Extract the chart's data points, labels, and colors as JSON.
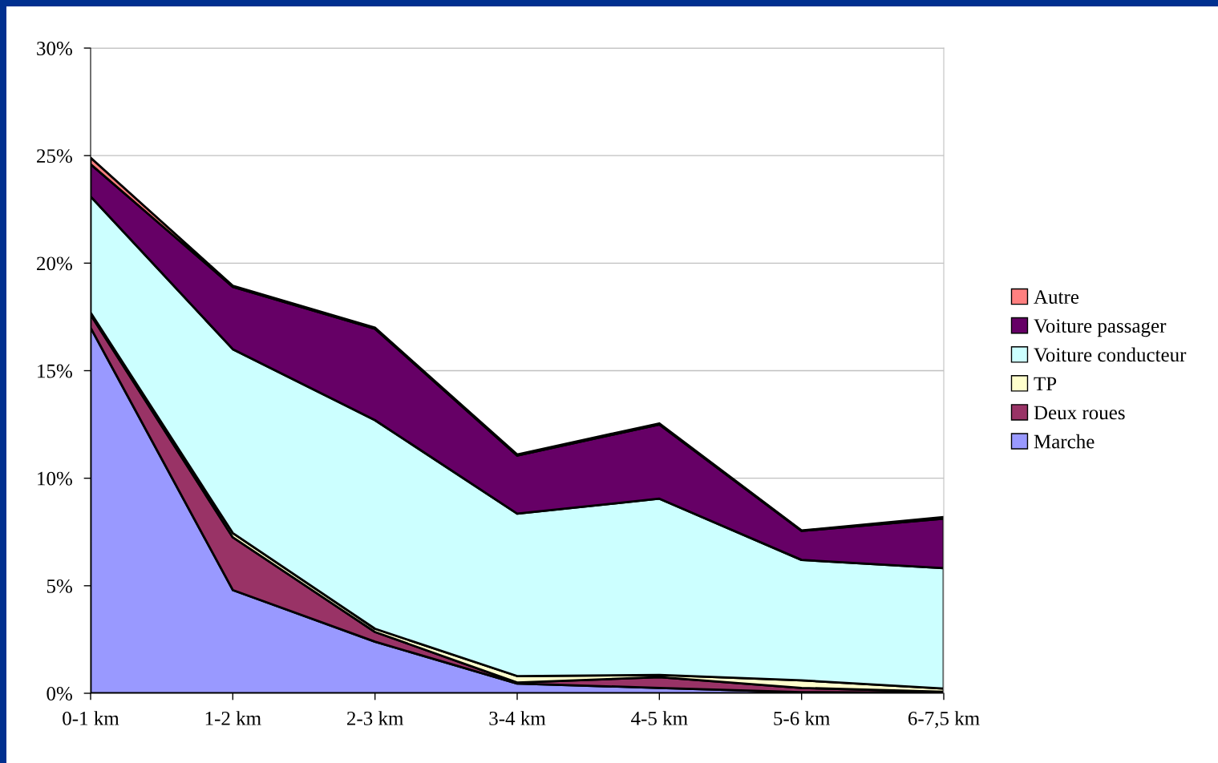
{
  "chart_data": {
    "type": "area",
    "stacked": true,
    "categories": [
      "0-1 km",
      "1-2 km",
      "2-3 km",
      "3-4 km",
      "4-5 km",
      "5-6 km",
      "6-7,5 km"
    ],
    "series": [
      {
        "name": "Marche",
        "color": "#9999ff",
        "values": [
          17.0,
          4.8,
          2.4,
          0.45,
          0.25,
          0.05,
          0.02
        ]
      },
      {
        "name": "Deux roues",
        "color": "#993366",
        "values": [
          0.6,
          2.45,
          0.45,
          0.05,
          0.5,
          0.2,
          0.05
        ]
      },
      {
        "name": "TP",
        "color": "#ffffcc",
        "values": [
          0.1,
          0.2,
          0.15,
          0.3,
          0.1,
          0.35,
          0.15
        ]
      },
      {
        "name": "Voiture conducteur",
        "color": "#ccffff",
        "values": [
          5.4,
          8.55,
          9.7,
          7.55,
          8.2,
          5.6,
          5.6
        ]
      },
      {
        "name": "Voiture passager",
        "color": "#660066",
        "values": [
          1.5,
          2.9,
          4.25,
          2.7,
          3.45,
          1.35,
          2.3
        ]
      },
      {
        "name": "Autre",
        "color": "#ff8080",
        "values": [
          0.3,
          0.05,
          0.05,
          0.05,
          0.05,
          0.02,
          0.07
        ]
      }
    ],
    "ylim": [
      0,
      30
    ],
    "yticks": [
      {
        "value": 0,
        "label": "0%"
      },
      {
        "value": 5,
        "label": "5%"
      },
      {
        "value": 10,
        "label": "10%"
      },
      {
        "value": 15,
        "label": "15%"
      },
      {
        "value": 20,
        "label": "20%"
      },
      {
        "value": 25,
        "label": "25%"
      },
      {
        "value": 30,
        "label": "30%"
      }
    ],
    "grid": "y",
    "legend": "right"
  }
}
